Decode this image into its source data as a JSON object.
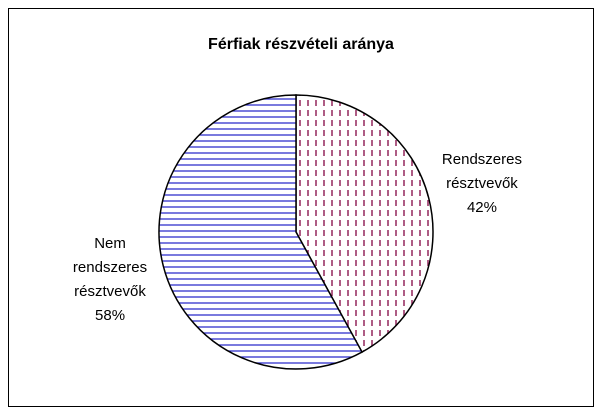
{
  "chart_data": {
    "type": "pie",
    "title": "Férfiak részvételi aránya",
    "categories": [
      "Rendszeres résztvevők",
      "Nem rendszeres résztvevők"
    ],
    "values": [
      42,
      58
    ],
    "value_labels": [
      "42%",
      "58%"
    ],
    "colors": [
      "#993366",
      "#3333cc"
    ]
  }
}
